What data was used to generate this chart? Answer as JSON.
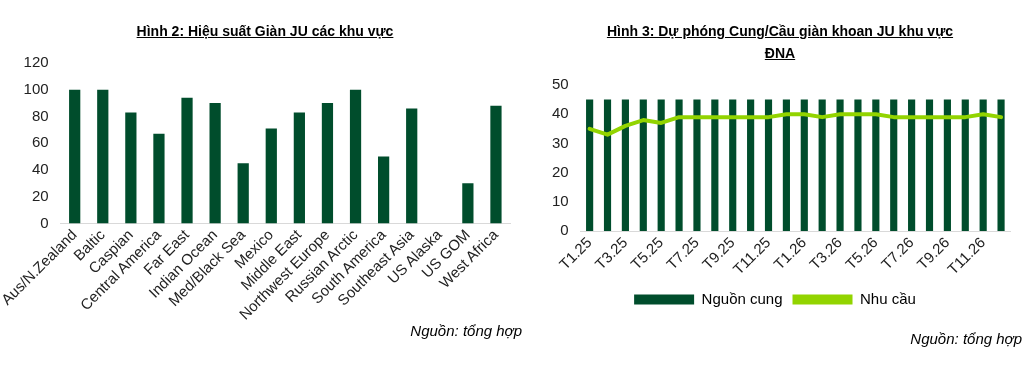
{
  "chart_data": [
    {
      "type": "bar",
      "title": "Hình 2: Hiệu suất Giàn JU các khu vực",
      "categories": [
        "Aus/N.Zealand",
        "Baltic",
        "Caspian",
        "Central America",
        "Far East",
        "Indian Ocean",
        "Med/Black Sea",
        "Mexico",
        "Middle East",
        "Northwest Europe",
        "Russian Arctic",
        "South America",
        "Southeast Asia",
        "US Alaska",
        "US GOM",
        "West Africa"
      ],
      "values": [
        100,
        100,
        83,
        67,
        94,
        90,
        45,
        71,
        83,
        90,
        100,
        50,
        86,
        null,
        30,
        88
      ],
      "color": "#004d2c",
      "ylim": [
        0,
        120
      ],
      "yticks": [
        0,
        20,
        40,
        60,
        80,
        100,
        120
      ],
      "grid": false,
      "legend": false,
      "annotations": [
        "Nguồn: tổng hợp"
      ]
    },
    {
      "type": "bar",
      "title": "Hình 3: Dự phóng Cung/Cầu giàn khoan JU khu vực ĐNA",
      "categories": [
        "T1.25",
        null,
        "T3.25",
        null,
        "T5.25",
        null,
        "T7.25",
        null,
        "T9.25",
        null,
        "T11.25",
        null,
        "T1.26",
        null,
        "T3.26",
        null,
        "T5.26",
        null,
        "T7.26",
        null,
        "T9.26",
        null,
        "T11.26",
        null
      ],
      "series": [
        {
          "name": "Nguồn cung",
          "type": "bar",
          "color": "#004d2c",
          "values": [
            45,
            45,
            45,
            45,
            45,
            45,
            45,
            45,
            45,
            45,
            45,
            45,
            45,
            45,
            45,
            45,
            45,
            45,
            45,
            45,
            45,
            45,
            45,
            45
          ]
        },
        {
          "name": "Nhu cầu",
          "type": "line",
          "color": "#92d400",
          "values": [
            35,
            33,
            36,
            38,
            37,
            39,
            39,
            39,
            39,
            39,
            39,
            40,
            40,
            39,
            40,
            40,
            40,
            39,
            39,
            39,
            39,
            39,
            40,
            39
          ]
        }
      ],
      "ylim": [
        0,
        50
      ],
      "yticks": [
        0,
        10,
        20,
        30,
        40,
        50
      ],
      "grid": false,
      "legend": "bottom",
      "marker": "none",
      "annotations": [
        "Nguồn: tổng hợp"
      ]
    }
  ]
}
